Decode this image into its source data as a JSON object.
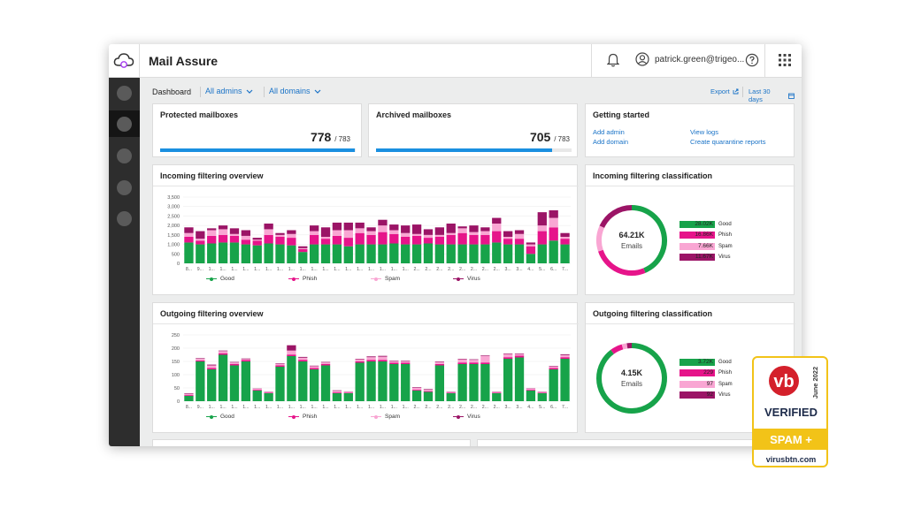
{
  "app": {
    "title": "Mail Assure",
    "user_email": "patrick.green@trigeo..."
  },
  "icons": {
    "logo": "cloud-icon",
    "bell": "bell-icon",
    "user": "user-circle-icon",
    "help": "help-icon",
    "apps": "app-grid-icon",
    "export": "export-icon",
    "calendar": "calendar-icon"
  },
  "toolbar": {
    "breadcrumb": "Dashboard",
    "admins_select": "All admins",
    "domains_select": "All domains",
    "export_label": "Export",
    "range_label": "Last 30 days"
  },
  "cards": {
    "protected": {
      "title": "Protected mailboxes",
      "value": "778",
      "total": "/ 783",
      "fraction": 0.9936
    },
    "archived": {
      "title": "Archived mailboxes",
      "value": "705",
      "total": "/ 783",
      "fraction": 0.9004
    },
    "getting_started": {
      "title": "Getting started",
      "links": [
        "Add admin",
        "Add domain",
        "View logs",
        "Create quarantine reports"
      ]
    }
  },
  "colors": {
    "good": "#17a34a",
    "phish": "#e6148a",
    "spam": "#f9a6d3",
    "virus": "#9b1466",
    "accent": "#1a8fe0"
  },
  "legend": {
    "good": "Good",
    "phish": "Phish",
    "spam": "Spam",
    "virus": "Virus"
  },
  "chart_data": [
    {
      "title": "Incoming filtering overview",
      "type": "bar",
      "stacked": true,
      "ylim": [
        0,
        3500
      ],
      "yticks": [
        0,
        500,
        1000,
        1500,
        2000,
        2500,
        3000,
        3500
      ],
      "ytick_labels": [
        "0",
        "500",
        "1,000",
        "1,500",
        "2,000",
        "2,500",
        "3,000",
        "3,500"
      ],
      "xtick_labels": [
        "8...",
        "9...",
        "1...",
        "1...",
        "1...",
        "1...",
        "1...",
        "1...",
        "1...",
        "1...",
        "1...",
        "1...",
        "1...",
        "1...",
        "1...",
        "1...",
        "1...",
        "1...",
        "1...",
        "1...",
        "2...",
        "2...",
        "2...",
        "2...",
        "2...",
        "2...",
        "2...",
        "2...",
        "3...",
        "3...",
        "4...",
        "5...",
        "6...",
        "7..."
      ],
      "series": [
        {
          "name": "Good",
          "values": [
            1100,
            1000,
            1050,
            1100,
            1100,
            1000,
            950,
            1050,
            1000,
            950,
            600,
            1000,
            1000,
            1000,
            900,
            1000,
            1000,
            1000,
            1050,
            1000,
            1000,
            1050,
            1000,
            1000,
            1000,
            1000,
            1000,
            1100,
            1000,
            1000,
            500,
            1000,
            1200,
            1000
          ]
        },
        {
          "name": "Phish",
          "values": [
            300,
            200,
            400,
            400,
            350,
            250,
            250,
            450,
            400,
            400,
            150,
            500,
            300,
            450,
            450,
            600,
            500,
            650,
            500,
            400,
            450,
            300,
            400,
            500,
            600,
            500,
            500,
            600,
            300,
            300,
            400,
            700,
            700,
            300
          ]
        },
        {
          "name": "Spam",
          "values": [
            200,
            100,
            300,
            300,
            100,
            200,
            50,
            300,
            100,
            200,
            50,
            200,
            100,
            300,
            400,
            250,
            200,
            350,
            200,
            200,
            100,
            150,
            100,
            100,
            250,
            150,
            200,
            400,
            100,
            250,
            100,
            300,
            500,
            100
          ]
        },
        {
          "name": "Virus",
          "values": [
            300,
            400,
            100,
            200,
            300,
            300,
            100,
            300,
            100,
            200,
            100,
            300,
            500,
            400,
            400,
            300,
            200,
            300,
            300,
            400,
            500,
            300,
            400,
            500,
            100,
            350,
            200,
            300,
            300,
            200,
            100,
            700,
            400,
            200
          ]
        }
      ]
    },
    {
      "title": "Outgoing filtering overview",
      "type": "bar",
      "stacked": true,
      "ylim": [
        0,
        250
      ],
      "yticks": [
        0,
        50,
        100,
        150,
        200,
        250
      ],
      "ytick_labels": [
        "0",
        "50",
        "100",
        "150",
        "200",
        "250"
      ],
      "xtick_labels": [
        "8...",
        "9...",
        "1...",
        "1...",
        "1...",
        "1...",
        "1...",
        "1...",
        "1...",
        "1...",
        "1...",
        "1...",
        "1...",
        "1...",
        "1...",
        "1...",
        "1...",
        "1...",
        "1...",
        "1...",
        "2...",
        "2...",
        "2...",
        "2...",
        "2...",
        "2...",
        "2...",
        "2...",
        "3...",
        "3...",
        "4...",
        "5...",
        "6...",
        "7..."
      ],
      "series": [
        {
          "name": "Good",
          "values": [
            20,
            150,
            120,
            175,
            135,
            150,
            40,
            30,
            130,
            170,
            150,
            120,
            135,
            30,
            30,
            145,
            150,
            150,
            140,
            140,
            40,
            35,
            135,
            30,
            140,
            140,
            140,
            30,
            160,
            165,
            40,
            30,
            120,
            160
          ]
        },
        {
          "name": "Phish",
          "values": [
            3,
            4,
            5,
            6,
            5,
            5,
            3,
            2,
            5,
            6,
            6,
            5,
            5,
            3,
            2,
            5,
            6,
            6,
            5,
            5,
            3,
            3,
            5,
            2,
            6,
            6,
            6,
            2,
            6,
            7,
            3,
            2,
            5,
            6
          ]
        },
        {
          "name": "Spam",
          "values": [
            5,
            6,
            10,
            8,
            6,
            4,
            4,
            3,
            6,
            15,
            8,
            7,
            6,
            6,
            4,
            8,
            10,
            12,
            6,
            6,
            8,
            6,
            8,
            3,
            12,
            10,
            25,
            3,
            12,
            6,
            5,
            3,
            6,
            8
          ]
        },
        {
          "name": "Virus",
          "values": [
            2,
            2,
            3,
            2,
            2,
            2,
            1,
            1,
            2,
            20,
            3,
            2,
            2,
            2,
            1,
            2,
            3,
            3,
            2,
            2,
            2,
            2,
            2,
            1,
            2,
            2,
            2,
            1,
            2,
            2,
            1,
            1,
            2,
            3
          ]
        }
      ]
    },
    {
      "title": "Incoming filtering classification",
      "type": "pie",
      "donut": true,
      "center_value": "64.21K",
      "center_label": "Emails",
      "categories": [
        "Good",
        "Phish",
        "Spam",
        "Virus"
      ],
      "values": [
        28.02,
        16.86,
        7.66,
        11.67
      ],
      "value_labels": [
        "28.02K",
        "16.86K",
        "7.66K",
        "11.67K"
      ]
    },
    {
      "title": "Outgoing filtering classification",
      "type": "pie",
      "donut": true,
      "center_value": "4.15K",
      "center_label": "Emails",
      "categories": [
        "Good",
        "Phish",
        "Spam",
        "Virus"
      ],
      "values": [
        3720,
        229,
        97,
        92
      ],
      "value_labels": [
        "3.72K",
        "229",
        "97",
        "92"
      ]
    }
  ],
  "badge": {
    "logo": "vb",
    "date": "June 2022",
    "verified": "VERIFIED",
    "category": "SPAM +",
    "site": "virusbtn.com"
  }
}
